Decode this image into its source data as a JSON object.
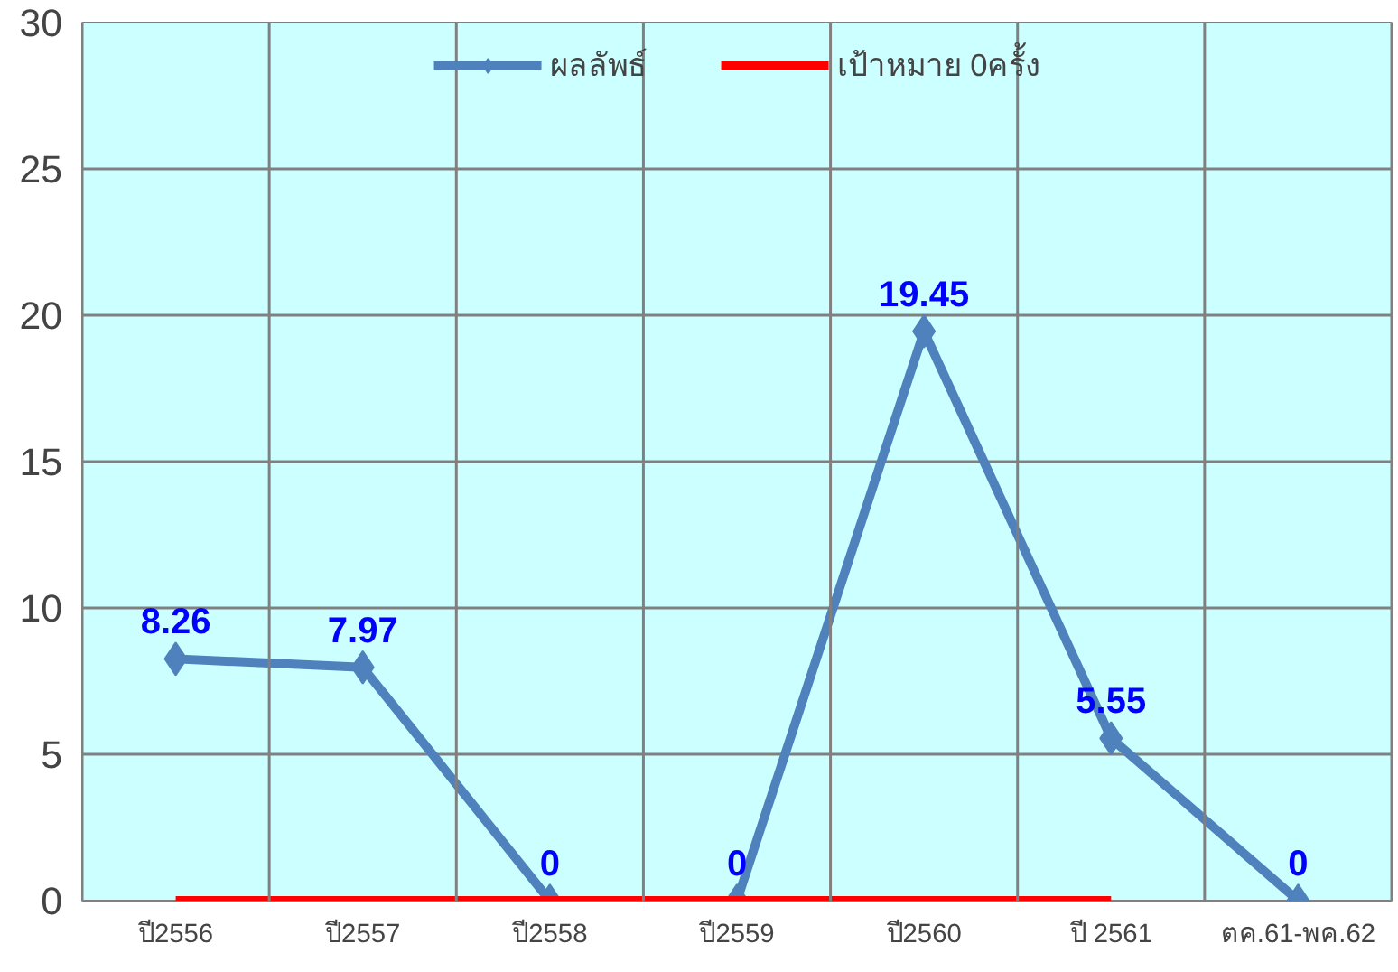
{
  "chart_data": {
    "type": "line",
    "categories": [
      "ปี2556",
      "ปี2557",
      "ปี2558",
      "ปี2559",
      "ปี2560",
      "ปี 2561",
      "ตค.61-พค.62"
    ],
    "series": [
      {
        "name": "ผลลัพธ์",
        "color": "#4f81bd",
        "marker": "diamond",
        "values": [
          8.26,
          7.97,
          0,
          0,
          19.45,
          5.55,
          0
        ],
        "value_labels": [
          "8.26",
          "7.97",
          "0",
          "0",
          "19.45",
          "5.55",
          "0"
        ]
      },
      {
        "name": "เป้าหมาย 0ครั้ง",
        "color": "#ff0000",
        "marker": "none",
        "values": [
          0,
          0,
          0,
          0,
          0,
          0,
          null
        ]
      }
    ],
    "ylim": [
      0,
      30
    ],
    "yticks": [
      0,
      5,
      10,
      15,
      20,
      25,
      30
    ],
    "grid": true,
    "legend": "top"
  }
}
